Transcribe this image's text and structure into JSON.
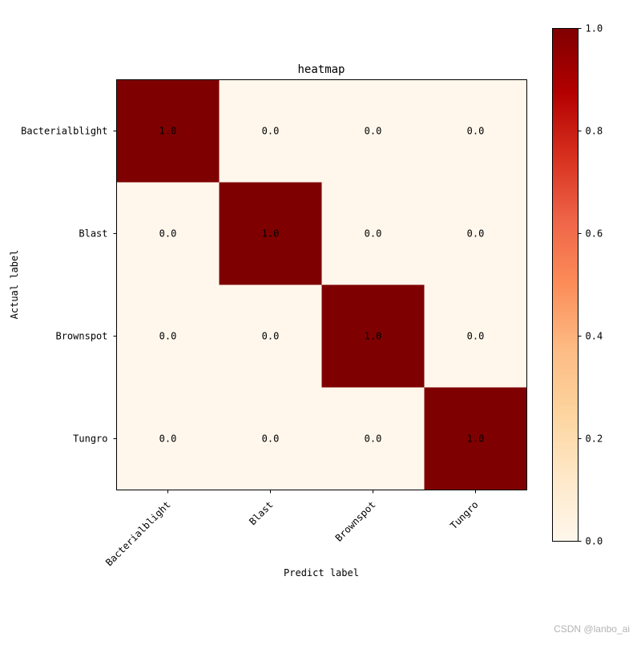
{
  "chart_data": {
    "type": "heatmap",
    "title": "heatmap",
    "xlabel": "Predict label",
    "ylabel": "Actual label",
    "x_categories": [
      "Bacterialblight",
      "Blast",
      "Brownspot",
      "Tungro"
    ],
    "y_categories": [
      "Bacterialblight",
      "Blast",
      "Brownspot",
      "Tungro"
    ],
    "values": [
      [
        1.0,
        0.0,
        0.0,
        0.0
      ],
      [
        0.0,
        1.0,
        0.0,
        0.0
      ],
      [
        0.0,
        0.0,
        1.0,
        0.0
      ],
      [
        0.0,
        0.0,
        0.0,
        1.0
      ]
    ],
    "value_format": "0.0",
    "colormap": "OrRd",
    "color_min": "#fff7ec",
    "color_max": "#7f0000",
    "colorbar": {
      "range": [
        0.0,
        1.0
      ],
      "ticks": [
        0.0,
        0.2,
        0.4,
        0.6,
        0.8,
        1.0
      ],
      "tick_labels": [
        "0.0",
        "0.2",
        "0.4",
        "0.6",
        "0.8",
        "1.0"
      ],
      "placement": "right"
    }
  },
  "watermark": "CSDN @lanbo_ai"
}
